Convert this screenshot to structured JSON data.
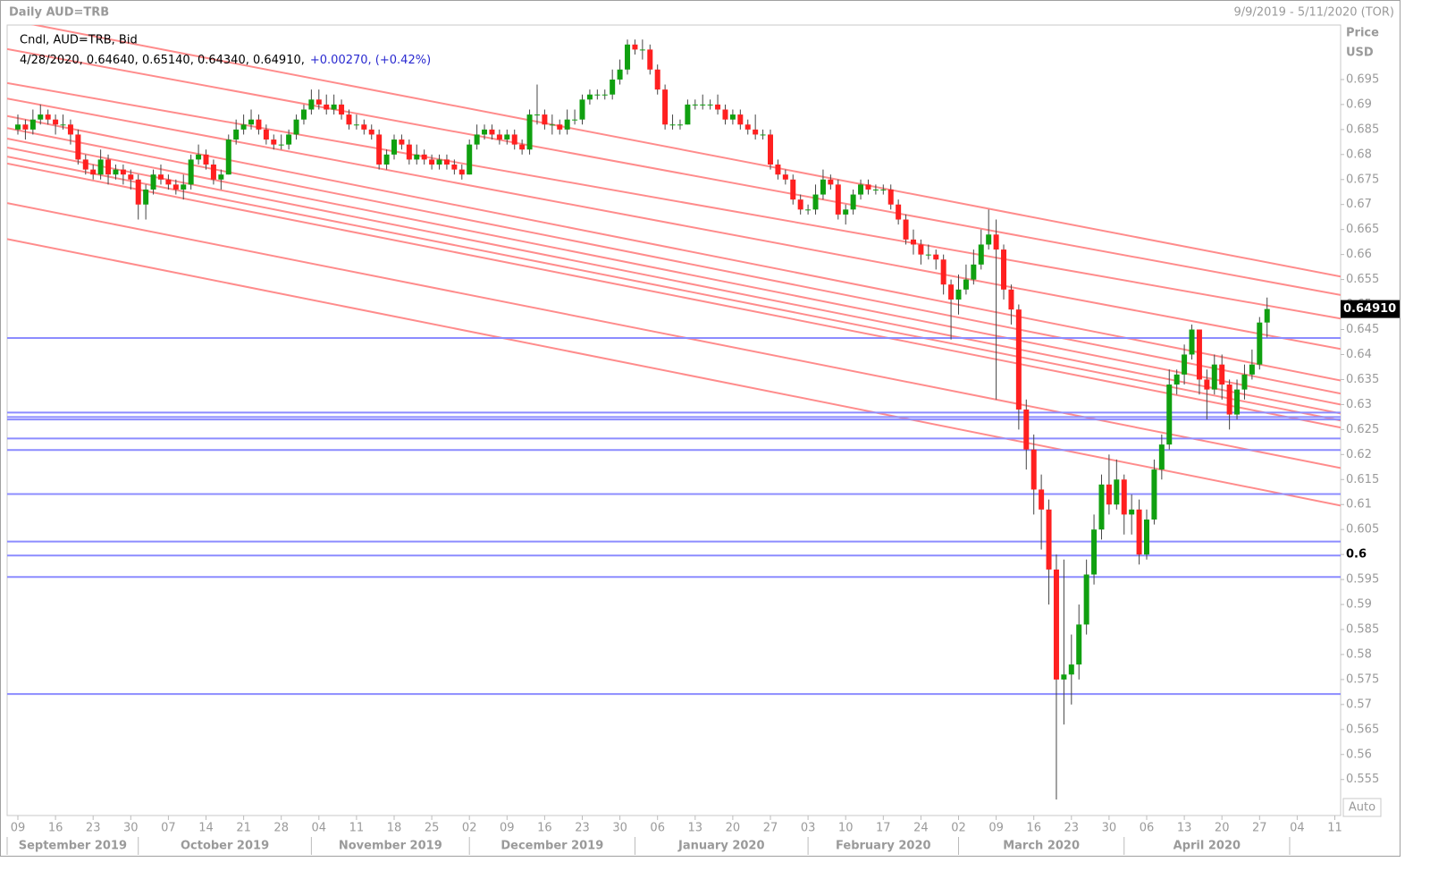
{
  "chart_data": {
    "type": "candlestick",
    "title": "Daily AUD=TRB",
    "date_range": "9/9/2019 - 5/11/2020 (TOR)",
    "legend_line": "Cndl, AUD=TRB, Bid",
    "info_line": "4/28/2020, 0.64640, 0.65140, 0.64340, 0.64910,",
    "change_text": "+0.00270, (+0.42%)",
    "axis_label": "Price",
    "axis_unit": "USD",
    "auto_button": "Auto",
    "last_price": {
      "value": 0.6491,
      "label": "0.64910"
    },
    "up_color": "#10a010",
    "down_color": "#ff2020",
    "trendline_color": "#ff8c8c",
    "hline_color": "#8c8cff",
    "ylim": [
      0.5478,
      0.7059
    ],
    "yticks": [
      0.695,
      0.69,
      0.685,
      0.68,
      0.675,
      0.67,
      0.665,
      0.66,
      0.655,
      0.65,
      0.645,
      0.64,
      0.635,
      0.63,
      0.625,
      0.62,
      0.615,
      0.61,
      0.605,
      0.6,
      0.595,
      0.59,
      0.585,
      0.58,
      0.575,
      0.57,
      0.565,
      0.56,
      0.555
    ],
    "bold_tick": 0.6,
    "hlines": [
      0.6433,
      0.6284,
      0.6275,
      0.627,
      0.6232,
      0.6209,
      0.6121,
      0.6026,
      0.5998,
      0.5955,
      0.5721
    ],
    "trendlines": [
      [
        0.707,
        0.6556
      ],
      [
        0.7011,
        0.6519
      ],
      [
        0.6943,
        0.6472
      ],
      [
        0.6912,
        0.6411
      ],
      [
        0.6877,
        0.6348
      ],
      [
        0.6853,
        0.6322
      ],
      [
        0.6832,
        0.63
      ],
      [
        0.6814,
        0.6282
      ],
      [
        0.6796,
        0.6268
      ],
      [
        0.6782,
        0.6254
      ],
      [
        0.6703,
        0.6173
      ],
      [
        0.6631,
        0.6098
      ]
    ],
    "xticks": [
      {
        "value": "9/9/2019",
        "label": "09"
      },
      {
        "value": "9/16/2019",
        "label": "16"
      },
      {
        "value": "9/23/2019",
        "label": "23"
      },
      {
        "value": "9/30/2019",
        "label": "30"
      },
      {
        "value": "10/7/2019",
        "label": "07"
      },
      {
        "value": "10/14/2019",
        "label": "14"
      },
      {
        "value": "10/21/2019",
        "label": "21"
      },
      {
        "value": "10/28/2019",
        "label": "28"
      },
      {
        "value": "11/4/2019",
        "label": "04"
      },
      {
        "value": "11/11/2019",
        "label": "11"
      },
      {
        "value": "11/18/2019",
        "label": "18"
      },
      {
        "value": "11/25/2019",
        "label": "25"
      },
      {
        "value": "12/2/2019",
        "label": "02"
      },
      {
        "value": "12/9/2019",
        "label": "09"
      },
      {
        "value": "12/16/2019",
        "label": "16"
      },
      {
        "value": "12/23/2019",
        "label": "23"
      },
      {
        "value": "12/30/2019",
        "label": "30"
      },
      {
        "value": "1/6/2020",
        "label": "06"
      },
      {
        "value": "1/13/2020",
        "label": "13"
      },
      {
        "value": "1/20/2020",
        "label": "20"
      },
      {
        "value": "1/27/2020",
        "label": "27"
      },
      {
        "value": "2/3/2020",
        "label": "03"
      },
      {
        "value": "2/10/2020",
        "label": "10"
      },
      {
        "value": "2/17/2020",
        "label": "17"
      },
      {
        "value": "2/24/2020",
        "label": "24"
      },
      {
        "value": "3/2/2020",
        "label": "02"
      },
      {
        "value": "3/9/2020",
        "label": "09"
      },
      {
        "value": "3/16/2020",
        "label": "16"
      },
      {
        "value": "3/23/2020",
        "label": "23"
      },
      {
        "value": "3/30/2020",
        "label": "30"
      },
      {
        "value": "4/6/2020",
        "label": "06"
      },
      {
        "value": "4/13/2020",
        "label": "13"
      },
      {
        "value": "4/20/2020",
        "label": "20"
      },
      {
        "value": "4/27/2020",
        "label": "27"
      },
      {
        "value": "5/4/2020",
        "label": "04"
      },
      {
        "value": "5/11/2020",
        "label": "11"
      }
    ],
    "months": [
      {
        "value": "9/1/2019",
        "label": "September 2019"
      },
      {
        "value": "10/1/2019",
        "label": "October 2019"
      },
      {
        "value": "11/1/2019",
        "label": "November 2019"
      },
      {
        "value": "12/1/2019",
        "label": "December 2019"
      },
      {
        "value": "1/1/2020",
        "label": "January 2020"
      },
      {
        "value": "2/1/2020",
        "label": "February 2020"
      },
      {
        "value": "3/1/2020",
        "label": "March 2020"
      },
      {
        "value": "4/1/2020",
        "label": "April 2020"
      },
      {
        "value": "5/1/2020",
        "label": null
      }
    ],
    "x": [
      "9/9/2019",
      "9/10/2019",
      "9/11/2019",
      "9/12/2019",
      "9/13/2019",
      "9/16/2019",
      "9/17/2019",
      "9/18/2019",
      "9/19/2019",
      "9/20/2019",
      "9/23/2019",
      "9/24/2019",
      "9/25/2019",
      "9/26/2019",
      "9/27/2019",
      "9/30/2019",
      "10/1/2019",
      "10/2/2019",
      "10/3/2019",
      "10/4/2019",
      "10/7/2019",
      "10/8/2019",
      "10/9/2019",
      "10/10/2019",
      "10/11/2019",
      "10/14/2019",
      "10/15/2019",
      "10/16/2019",
      "10/17/2019",
      "10/18/2019",
      "10/21/2019",
      "10/22/2019",
      "10/23/2019",
      "10/24/2019",
      "10/25/2019",
      "10/28/2019",
      "10/29/2019",
      "10/30/2019",
      "10/31/2019",
      "11/1/2019",
      "11/4/2019",
      "11/5/2019",
      "11/6/2019",
      "11/7/2019",
      "11/8/2019",
      "11/11/2019",
      "11/12/2019",
      "11/13/2019",
      "11/14/2019",
      "11/15/2019",
      "11/18/2019",
      "11/19/2019",
      "11/20/2019",
      "11/21/2019",
      "11/22/2019",
      "11/25/2019",
      "11/26/2019",
      "11/27/2019",
      "11/28/2019",
      "11/29/2019",
      "12/2/2019",
      "12/3/2019",
      "12/4/2019",
      "12/5/2019",
      "12/6/2019",
      "12/9/2019",
      "12/10/2019",
      "12/11/2019",
      "12/12/2019",
      "12/13/2019",
      "12/16/2019",
      "12/17/2019",
      "12/18/2019",
      "12/19/2019",
      "12/20/2019",
      "12/23/2019",
      "12/24/2019",
      "12/25/2019",
      "12/26/2019",
      "12/27/2019",
      "12/30/2019",
      "12/31/2019",
      "1/1/2020",
      "1/2/2020",
      "1/3/2020",
      "1/6/2020",
      "1/7/2020",
      "1/8/2020",
      "1/9/2020",
      "1/10/2020",
      "1/13/2020",
      "1/14/2020",
      "1/15/2020",
      "1/16/2020",
      "1/17/2020",
      "1/20/2020",
      "1/21/2020",
      "1/22/2020",
      "1/23/2020",
      "1/24/2020",
      "1/27/2020",
      "1/28/2020",
      "1/29/2020",
      "1/30/2020",
      "1/31/2020",
      "2/3/2020",
      "2/4/2020",
      "2/5/2020",
      "2/6/2020",
      "2/7/2020",
      "2/10/2020",
      "2/11/2020",
      "2/12/2020",
      "2/13/2020",
      "2/14/2020",
      "2/17/2020",
      "2/18/2020",
      "2/19/2020",
      "2/20/2020",
      "2/21/2020",
      "2/24/2020",
      "2/25/2020",
      "2/26/2020",
      "2/27/2020",
      "2/28/2020",
      "3/2/2020",
      "3/3/2020",
      "3/4/2020",
      "3/5/2020",
      "3/6/2020",
      "3/9/2020",
      "3/10/2020",
      "3/11/2020",
      "3/12/2020",
      "3/13/2020",
      "3/16/2020",
      "3/17/2020",
      "3/18/2020",
      "3/19/2020",
      "3/20/2020",
      "3/23/2020",
      "3/24/2020",
      "3/25/2020",
      "3/26/2020",
      "3/27/2020",
      "3/30/2020",
      "3/31/2020",
      "4/1/2020",
      "4/2/2020",
      "4/3/2020",
      "4/6/2020",
      "4/7/2020",
      "4/8/2020",
      "4/9/2020",
      "4/10/2020",
      "4/13/2020",
      "4/14/2020",
      "4/15/2020",
      "4/16/2020",
      "4/17/2020",
      "4/20/2020",
      "4/21/2020",
      "4/22/2020",
      "4/23/2020",
      "4/24/2020",
      "4/27/2020",
      "4/28/2020"
    ],
    "open": [
      0.685,
      0.686,
      0.685,
      0.687,
      0.688,
      0.687,
      0.686,
      0.686,
      0.684,
      0.679,
      0.677,
      0.676,
      0.679,
      0.676,
      0.677,
      0.676,
      0.675,
      0.67,
      0.673,
      0.676,
      0.675,
      0.674,
      0.673,
      0.674,
      0.679,
      0.68,
      0.678,
      0.675,
      0.676,
      0.683,
      0.685,
      0.686,
      0.687,
      0.685,
      0.683,
      0.682,
      0.682,
      0.684,
      0.687,
      0.689,
      0.691,
      0.69,
      0.689,
      0.69,
      0.688,
      0.686,
      0.686,
      0.685,
      0.684,
      0.678,
      0.68,
      0.683,
      0.682,
      0.679,
      0.68,
      0.679,
      0.678,
      0.679,
      0.678,
      0.677,
      0.676,
      0.682,
      0.684,
      0.685,
      0.684,
      0.683,
      0.684,
      0.682,
      0.681,
      0.688,
      0.688,
      0.686,
      0.686,
      0.685,
      0.687,
      0.687,
      0.691,
      0.692,
      0.692,
      0.692,
      0.695,
      0.697,
      0.702,
      0.701,
      0.701,
      0.697,
      0.693,
      0.686,
      0.686,
      0.686,
      0.69,
      0.69,
      0.69,
      0.69,
      0.689,
      0.687,
      0.688,
      0.686,
      0.685,
      0.684,
      0.684,
      0.678,
      0.676,
      0.675,
      0.671,
      0.669,
      0.669,
      0.672,
      0.675,
      0.674,
      0.668,
      0.669,
      0.672,
      0.674,
      0.673,
      0.673,
      0.673,
      0.67,
      0.667,
      0.663,
      0.662,
      0.66,
      0.66,
      0.659,
      0.654,
      0.651,
      0.653,
      0.655,
      0.658,
      0.662,
      0.664,
      0.661,
      0.653,
      0.649,
      0.629,
      0.621,
      0.613,
      0.609,
      0.597,
      0.575,
      0.576,
      0.578,
      0.586,
      0.596,
      0.605,
      0.614,
      0.61,
      0.615,
      0.608,
      0.609,
      0.6,
      0.607,
      0.617,
      0.622,
      0.634,
      0.636,
      0.64,
      0.645,
      0.635,
      0.633,
      0.638,
      0.634,
      0.628,
      0.633,
      0.636,
      0.638,
      0.6464
    ],
    "high": [
      0.688,
      0.687,
      0.689,
      0.69,
      0.689,
      0.688,
      0.688,
      0.687,
      0.685,
      0.68,
      0.678,
      0.681,
      0.68,
      0.678,
      0.678,
      0.677,
      0.676,
      0.674,
      0.677,
      0.678,
      0.676,
      0.675,
      0.676,
      0.68,
      0.682,
      0.681,
      0.679,
      0.677,
      0.684,
      0.687,
      0.688,
      0.689,
      0.688,
      0.686,
      0.684,
      0.684,
      0.685,
      0.688,
      0.69,
      0.693,
      0.693,
      0.692,
      0.692,
      0.691,
      0.689,
      0.688,
      0.687,
      0.686,
      0.685,
      0.681,
      0.684,
      0.684,
      0.683,
      0.682,
      0.681,
      0.68,
      0.68,
      0.68,
      0.679,
      0.678,
      0.683,
      0.686,
      0.686,
      0.686,
      0.685,
      0.685,
      0.685,
      0.683,
      0.689,
      0.694,
      0.689,
      0.688,
      0.687,
      0.689,
      0.689,
      0.692,
      0.693,
      0.693,
      0.693,
      0.697,
      0.699,
      0.703,
      0.703,
      0.703,
      0.702,
      0.698,
      0.694,
      0.688,
      0.687,
      0.691,
      0.691,
      0.692,
      0.691,
      0.692,
      0.69,
      0.689,
      0.689,
      0.687,
      0.688,
      0.685,
      0.685,
      0.679,
      0.677,
      0.676,
      0.672,
      0.67,
      0.674,
      0.677,
      0.676,
      0.675,
      0.67,
      0.673,
      0.675,
      0.675,
      0.674,
      0.674,
      0.674,
      0.671,
      0.668,
      0.665,
      0.663,
      0.662,
      0.661,
      0.66,
      0.655,
      0.656,
      0.658,
      0.661,
      0.665,
      0.669,
      0.667,
      0.662,
      0.654,
      0.65,
      0.631,
      0.624,
      0.616,
      0.611,
      0.6,
      0.599,
      0.584,
      0.59,
      0.599,
      0.608,
      0.616,
      0.62,
      0.619,
      0.616,
      0.612,
      0.611,
      0.609,
      0.619,
      0.624,
      0.637,
      0.637,
      0.642,
      0.646,
      0.645,
      0.637,
      0.64,
      0.64,
      0.635,
      0.635,
      0.638,
      0.641,
      0.6475,
      0.6514
    ],
    "low": [
      0.684,
      0.683,
      0.684,
      0.686,
      0.686,
      0.684,
      0.685,
      0.682,
      0.678,
      0.676,
      0.675,
      0.675,
      0.674,
      0.675,
      0.674,
      0.673,
      0.667,
      0.667,
      0.672,
      0.674,
      0.673,
      0.672,
      0.671,
      0.673,
      0.678,
      0.677,
      0.674,
      0.673,
      0.676,
      0.682,
      0.684,
      0.685,
      0.684,
      0.682,
      0.681,
      0.681,
      0.681,
      0.683,
      0.686,
      0.688,
      0.689,
      0.688,
      0.688,
      0.687,
      0.685,
      0.685,
      0.684,
      0.683,
      0.677,
      0.677,
      0.679,
      0.681,
      0.678,
      0.678,
      0.678,
      0.677,
      0.677,
      0.677,
      0.676,
      0.675,
      0.676,
      0.681,
      0.683,
      0.683,
      0.682,
      0.682,
      0.681,
      0.68,
      0.68,
      0.686,
      0.685,
      0.684,
      0.684,
      0.684,
      0.686,
      0.686,
      0.69,
      0.691,
      0.691,
      0.691,
      0.694,
      0.696,
      0.7,
      0.699,
      0.696,
      0.692,
      0.685,
      0.685,
      0.685,
      0.686,
      0.689,
      0.689,
      0.689,
      0.688,
      0.686,
      0.686,
      0.685,
      0.684,
      0.683,
      0.683,
      0.677,
      0.675,
      0.674,
      0.67,
      0.668,
      0.668,
      0.668,
      0.671,
      0.673,
      0.667,
      0.666,
      0.668,
      0.671,
      0.672,
      0.672,
      0.672,
      0.669,
      0.666,
      0.662,
      0.66,
      0.658,
      0.659,
      0.657,
      0.652,
      0.643,
      0.648,
      0.652,
      0.654,
      0.657,
      0.661,
      0.631,
      0.651,
      0.646,
      0.625,
      0.617,
      0.608,
      0.601,
      0.59,
      0.551,
      0.566,
      0.57,
      0.575,
      0.584,
      0.594,
      0.603,
      0.608,
      0.609,
      0.604,
      0.604,
      0.598,
      0.599,
      0.606,
      0.615,
      0.621,
      0.632,
      0.634,
      0.639,
      0.632,
      0.627,
      0.632,
      0.631,
      0.625,
      0.627,
      0.631,
      0.635,
      0.637,
      0.6434
    ],
    "close": [
      0.686,
      0.685,
      0.687,
      0.688,
      0.687,
      0.686,
      0.686,
      0.684,
      0.679,
      0.677,
      0.676,
      0.679,
      0.676,
      0.677,
      0.676,
      0.675,
      0.67,
      0.673,
      0.676,
      0.675,
      0.674,
      0.673,
      0.674,
      0.679,
      0.68,
      0.678,
      0.675,
      0.676,
      0.683,
      0.685,
      0.686,
      0.687,
      0.685,
      0.683,
      0.682,
      0.682,
      0.684,
      0.687,
      0.689,
      0.691,
      0.69,
      0.689,
      0.69,
      0.688,
      0.686,
      0.686,
      0.685,
      0.684,
      0.678,
      0.68,
      0.683,
      0.682,
      0.679,
      0.68,
      0.679,
      0.678,
      0.679,
      0.678,
      0.677,
      0.676,
      0.682,
      0.684,
      0.685,
      0.684,
      0.683,
      0.684,
      0.682,
      0.681,
      0.688,
      0.688,
      0.686,
      0.686,
      0.685,
      0.687,
      0.687,
      0.691,
      0.692,
      0.692,
      0.692,
      0.695,
      0.697,
      0.702,
      0.701,
      0.701,
      0.697,
      0.693,
      0.686,
      0.686,
      0.686,
      0.69,
      0.69,
      0.69,
      0.69,
      0.689,
      0.687,
      0.688,
      0.686,
      0.685,
      0.684,
      0.684,
      0.678,
      0.676,
      0.675,
      0.671,
      0.669,
      0.669,
      0.672,
      0.675,
      0.674,
      0.668,
      0.669,
      0.672,
      0.674,
      0.673,
      0.673,
      0.673,
      0.67,
      0.667,
      0.663,
      0.662,
      0.66,
      0.66,
      0.659,
      0.654,
      0.651,
      0.653,
      0.655,
      0.658,
      0.662,
      0.664,
      0.661,
      0.653,
      0.649,
      0.629,
      0.621,
      0.613,
      0.609,
      0.597,
      0.575,
      0.576,
      0.578,
      0.586,
      0.596,
      0.605,
      0.614,
      0.61,
      0.615,
      0.608,
      0.609,
      0.6,
      0.607,
      0.617,
      0.622,
      0.634,
      0.636,
      0.64,
      0.645,
      0.635,
      0.633,
      0.638,
      0.634,
      0.628,
      0.633,
      0.636,
      0.638,
      0.6464,
      0.6491
    ]
  }
}
